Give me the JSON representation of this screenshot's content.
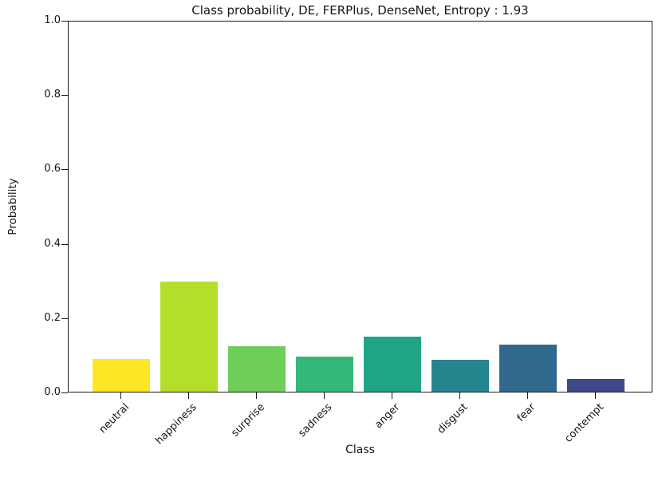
{
  "chart_data": {
    "type": "bar",
    "title": "Class probability, DE, FERPlus, DenseNet, Entropy : 1.93",
    "xlabel": "Class",
    "ylabel": "Probability",
    "categories": [
      "neutral",
      "happiness",
      "surprise",
      "sadness",
      "anger",
      "disgust",
      "fear",
      "contempt"
    ],
    "values": [
      0.089,
      0.298,
      0.122,
      0.095,
      0.149,
      0.086,
      0.127,
      0.034
    ],
    "bar_colors": [
      "#fde725",
      "#b5de2b",
      "#6ece58",
      "#35b779",
      "#20a486",
      "#25858e",
      "#31688e",
      "#3e4989"
    ],
    "ylim": [
      0,
      1
    ],
    "yticks": [
      0,
      0.2,
      0.4,
      0.6,
      0.8,
      1.0
    ],
    "ytick_labels": [
      "0.0",
      "0.2",
      "0.4",
      "0.6",
      "0.8",
      "1.0"
    ],
    "xtick_rotation_deg": 45,
    "grid": false,
    "legend": null,
    "entropy_value": "1.93"
  }
}
